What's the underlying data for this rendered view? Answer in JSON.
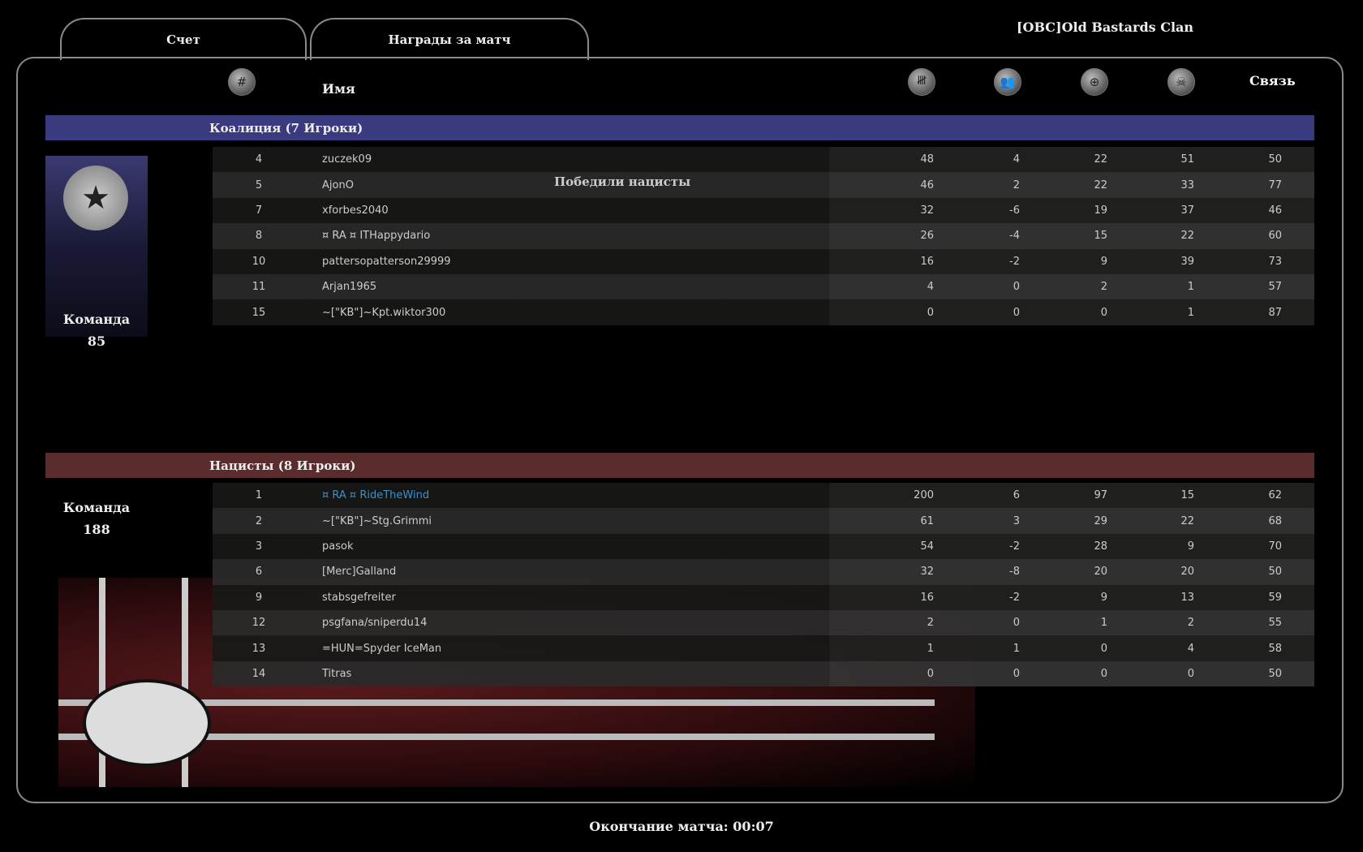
{
  "tabs": [
    {
      "label": "Счет",
      "active": true
    },
    {
      "label": "Награды за матч",
      "active": false
    }
  ],
  "server_name": "[OBC]Old Bastards Clan",
  "columns": {
    "rank_icon": "hash-icon",
    "name": "Имя",
    "icons": [
      "tally-kills-icon",
      "team-icon",
      "helmet-crosshair-icon",
      "skull-crossbones-icon"
    ],
    "ping": "Связь"
  },
  "result_text": "Победили нацисты",
  "teams": [
    {
      "title": "Коалиция  (7 Игроки)",
      "color": "#393a80",
      "team_label": "Команда",
      "team_score": "85",
      "players": [
        {
          "rank": "4",
          "name": "zuczek09",
          "s": [
            "48",
            "4",
            "22",
            "51",
            "50"
          ]
        },
        {
          "rank": "5",
          "name": "AjonO",
          "s": [
            "46",
            "2",
            "22",
            "33",
            "77"
          ]
        },
        {
          "rank": "7",
          "name": "xforbes2040",
          "s": [
            "32",
            "-6",
            "19",
            "37",
            "46"
          ]
        },
        {
          "rank": "8",
          "name": "¤ RA ¤ ITHappydario",
          "s": [
            "26",
            "-4",
            "15",
            "22",
            "60"
          ]
        },
        {
          "rank": "10",
          "name": "pattersopatterson29999",
          "s": [
            "16",
            "-2",
            "9",
            "39",
            "73"
          ]
        },
        {
          "rank": "11",
          "name": "Arjan1965",
          "s": [
            "4",
            "0",
            "2",
            "1",
            "57"
          ]
        },
        {
          "rank": "15",
          "name": "~[\"KB\"]~Kpt.wiktor300",
          "s": [
            "0",
            "0",
            "0",
            "1",
            "87"
          ]
        }
      ]
    },
    {
      "title": "Нацисты  (8 Игроки)",
      "color": "#5a2c2e",
      "team_label": "Команда",
      "team_score": "188",
      "players": [
        {
          "rank": "1",
          "name": "¤ RA ¤ RideTheWind",
          "s": [
            "200",
            "6",
            "97",
            "15",
            "62"
          ],
          "highlight": "#3a8fd0"
        },
        {
          "rank": "2",
          "name": "~[\"KB\"]~Stg.Grimmi",
          "s": [
            "61",
            "3",
            "29",
            "22",
            "68"
          ]
        },
        {
          "rank": "3",
          "name": "pasok",
          "s": [
            "54",
            "-2",
            "28",
            "9",
            "70"
          ]
        },
        {
          "rank": "6",
          "name": "[Merc]Galland",
          "s": [
            "32",
            "-8",
            "20",
            "20",
            "50"
          ]
        },
        {
          "rank": "9",
          "name": "stabsgefreiter",
          "s": [
            "16",
            "-2",
            "9",
            "13",
            "59"
          ]
        },
        {
          "rank": "12",
          "name": "psgfana/sniperdu14",
          "s": [
            "2",
            "0",
            "1",
            "2",
            "55"
          ]
        },
        {
          "rank": "13",
          "name": "=HUN=Spyder IceMan",
          "s": [
            "1",
            "1",
            "0",
            "4",
            "58"
          ]
        },
        {
          "rank": "14",
          "name": "Titras",
          "s": [
            "0",
            "0",
            "0",
            "0",
            "50"
          ]
        }
      ]
    }
  ],
  "footer": {
    "label": "Окончание матча:",
    "time": "00:07"
  }
}
